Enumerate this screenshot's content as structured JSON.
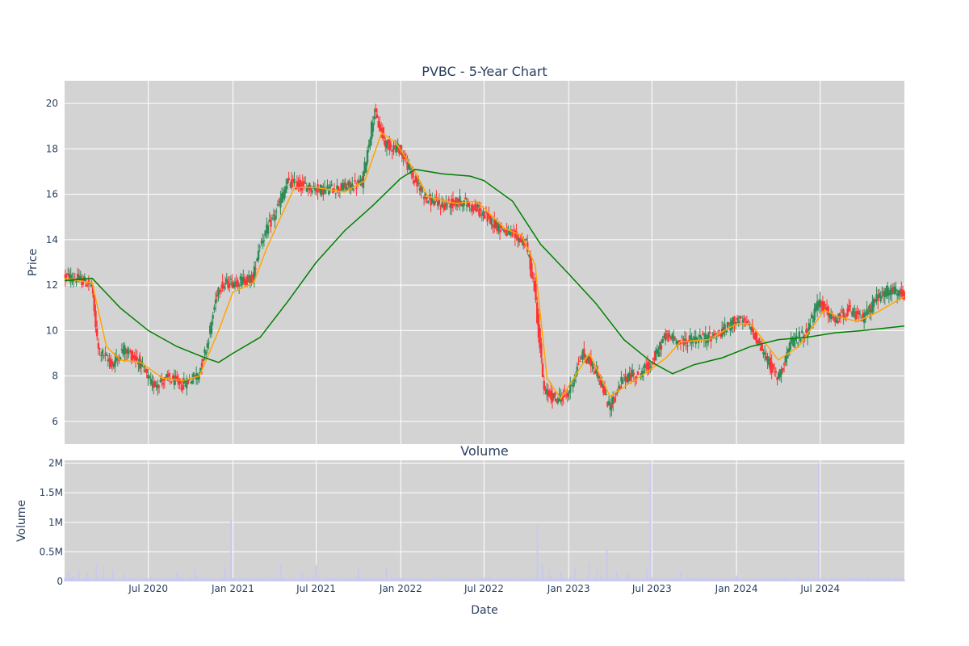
{
  "chart_data": [
    {
      "type": "candlestick",
      "title": "PVBC - 5-Year Chart",
      "ylabel": "Price",
      "ylim": [
        5.0,
        21.0
      ],
      "yticks": [
        6,
        8,
        10,
        12,
        14,
        16,
        18,
        20
      ],
      "xlim": [
        "2020-01-01",
        "2024-12-31"
      ],
      "grid": true,
      "colors": {
        "increasing": "#2e8b57",
        "decreasing": "#ff3333",
        "ma_short": "#ffa500",
        "ma_long": "#008000",
        "background": "#d3d3d3"
      },
      "close_path": [
        [
          "2020-01-01",
          12.4
        ],
        [
          "2020-02-10",
          12.2
        ],
        [
          "2020-03-01",
          12.0
        ],
        [
          "2020-03-15",
          9.2
        ],
        [
          "2020-04-15",
          8.5
        ],
        [
          "2020-05-10",
          9.2
        ],
        [
          "2020-06-10",
          8.7
        ],
        [
          "2020-07-10",
          7.6
        ],
        [
          "2020-08-15",
          7.9
        ],
        [
          "2020-09-15",
          7.6
        ],
        [
          "2020-10-20",
          8.1
        ],
        [
          "2020-11-10",
          9.6
        ],
        [
          "2020-12-01",
          11.9
        ],
        [
          "2020-12-25",
          12.1
        ],
        [
          "2021-01-20",
          12.2
        ],
        [
          "2021-02-15",
          12.3
        ],
        [
          "2021-03-01",
          13.8
        ],
        [
          "2021-04-01",
          15.0
        ],
        [
          "2021-05-01",
          16.5
        ],
        [
          "2021-06-01",
          16.4
        ],
        [
          "2021-07-15",
          16.2
        ],
        [
          "2021-09-01",
          16.3
        ],
        [
          "2021-10-10",
          16.5
        ],
        [
          "2021-11-05",
          19.6
        ],
        [
          "2021-12-01",
          18.2
        ],
        [
          "2022-01-01",
          18.0
        ],
        [
          "2022-02-01",
          16.6
        ],
        [
          "2022-03-01",
          15.8
        ],
        [
          "2022-04-01",
          15.5
        ],
        [
          "2022-05-15",
          15.7
        ],
        [
          "2022-06-20",
          15.3
        ],
        [
          "2022-08-01",
          14.6
        ],
        [
          "2022-09-01",
          14.2
        ],
        [
          "2022-10-01",
          13.9
        ],
        [
          "2022-10-20",
          11.9
        ],
        [
          "2022-11-10",
          7.3
        ],
        [
          "2022-12-05",
          7.0
        ],
        [
          "2023-01-01",
          7.2
        ],
        [
          "2023-02-01",
          9.0
        ],
        [
          "2023-03-05",
          8.2
        ],
        [
          "2023-04-01",
          6.6
        ],
        [
          "2023-05-01",
          7.9
        ],
        [
          "2023-06-01",
          8.1
        ],
        [
          "2023-07-01",
          8.5
        ],
        [
          "2023-08-01",
          9.8
        ],
        [
          "2023-09-01",
          9.5
        ],
        [
          "2023-10-01",
          9.6
        ],
        [
          "2023-11-01",
          9.7
        ],
        [
          "2023-12-01",
          9.9
        ],
        [
          "2024-01-01",
          10.5
        ],
        [
          "2024-02-01",
          10.2
        ],
        [
          "2024-03-01",
          9.0
        ],
        [
          "2024-04-01",
          7.9
        ],
        [
          "2024-05-01",
          9.5
        ],
        [
          "2024-06-01",
          9.9
        ],
        [
          "2024-07-01",
          11.3
        ],
        [
          "2024-08-01",
          10.4
        ],
        [
          "2024-09-01",
          10.9
        ],
        [
          "2024-10-01",
          10.5
        ],
        [
          "2024-11-01",
          11.4
        ],
        [
          "2024-12-01",
          11.8
        ],
        [
          "2024-12-31",
          11.5
        ]
      ],
      "moving_averages": [
        {
          "color": "#ffa500",
          "points": [
            [
              "2020-01-01",
              12.3
            ],
            [
              "2020-03-01",
              12.1
            ],
            [
              "2020-04-01",
              9.3
            ],
            [
              "2020-05-01",
              8.7
            ],
            [
              "2020-06-15",
              8.6
            ],
            [
              "2020-08-01",
              7.9
            ],
            [
              "2020-09-15",
              7.8
            ],
            [
              "2020-10-20",
              8.0
            ],
            [
              "2020-12-01",
              10.0
            ],
            [
              "2021-01-01",
              11.7
            ],
            [
              "2021-02-15",
              12.1
            ],
            [
              "2021-03-15",
              13.6
            ],
            [
              "2021-04-15",
              15.0
            ],
            [
              "2021-05-15",
              16.3
            ],
            [
              "2021-07-01",
              16.3
            ],
            [
              "2021-09-01",
              16.1
            ],
            [
              "2021-10-15",
              16.6
            ],
            [
              "2021-11-20",
              18.7
            ],
            [
              "2021-12-20",
              18.3
            ],
            [
              "2022-02-01",
              17.0
            ],
            [
              "2022-03-01",
              15.9
            ],
            [
              "2022-05-01",
              15.6
            ],
            [
              "2022-06-15",
              15.7
            ],
            [
              "2022-08-15",
              14.5
            ],
            [
              "2022-09-20",
              14.2
            ],
            [
              "2022-10-20",
              12.9
            ],
            [
              "2022-11-15",
              7.9
            ],
            [
              "2022-12-15",
              7.0
            ],
            [
              "2023-02-15",
              9.0
            ],
            [
              "2023-04-01",
              7.1
            ],
            [
              "2023-05-15",
              7.7
            ],
            [
              "2023-06-15",
              8.1
            ],
            [
              "2023-08-01",
              8.8
            ],
            [
              "2023-09-01",
              9.5
            ],
            [
              "2023-11-01",
              9.6
            ],
            [
              "2024-01-01",
              10.3
            ],
            [
              "2024-02-01",
              10.3
            ],
            [
              "2024-04-01",
              8.7
            ],
            [
              "2024-05-15",
              9.3
            ],
            [
              "2024-07-10",
              10.9
            ],
            [
              "2024-08-10",
              10.6
            ],
            [
              "2024-09-20",
              10.4
            ],
            [
              "2024-11-01",
              10.8
            ],
            [
              "2024-12-31",
              11.5
            ]
          ]
        },
        {
          "color": "#008000",
          "points": [
            [
              "2020-01-01",
              12.2
            ],
            [
              "2020-03-01",
              12.3
            ],
            [
              "2020-05-01",
              11.0
            ],
            [
              "2020-07-01",
              10.0
            ],
            [
              "2020-09-01",
              9.3
            ],
            [
              "2020-11-01",
              8.8
            ],
            [
              "2020-12-01",
              8.6
            ],
            [
              "2021-01-01",
              9.0
            ],
            [
              "2021-03-01",
              9.7
            ],
            [
              "2021-05-01",
              11.3
            ],
            [
              "2021-07-01",
              13.0
            ],
            [
              "2021-09-01",
              14.4
            ],
            [
              "2021-11-01",
              15.5
            ],
            [
              "2022-01-01",
              16.7
            ],
            [
              "2022-02-01",
              17.1
            ],
            [
              "2022-04-01",
              16.9
            ],
            [
              "2022-06-01",
              16.8
            ],
            [
              "2022-07-01",
              16.6
            ],
            [
              "2022-09-01",
              15.7
            ],
            [
              "2022-11-01",
              13.8
            ],
            [
              "2023-01-01",
              12.5
            ],
            [
              "2023-03-01",
              11.2
            ],
            [
              "2023-05-01",
              9.6
            ],
            [
              "2023-07-01",
              8.6
            ],
            [
              "2023-08-15",
              8.1
            ],
            [
              "2023-10-01",
              8.5
            ],
            [
              "2023-12-01",
              8.8
            ],
            [
              "2024-02-01",
              9.3
            ],
            [
              "2024-04-01",
              9.6
            ],
            [
              "2024-06-01",
              9.7
            ],
            [
              "2024-08-01",
              9.9
            ],
            [
              "2024-10-01",
              10.0
            ],
            [
              "2024-12-31",
              10.2
            ]
          ]
        }
      ]
    },
    {
      "type": "bar",
      "title": "Volume",
      "ylabel": "Volume",
      "xlabel": "Date",
      "ylim": [
        0,
        2050000
      ],
      "yticks": [
        0,
        500000,
        1000000,
        1500000,
        2000000
      ],
      "ytick_labels": [
        "0",
        "0.5M",
        "1M",
        "1.5M",
        "2M"
      ],
      "xticks": [
        "2020-07-01",
        "2021-01-01",
        "2021-07-01",
        "2022-01-01",
        "2022-07-01",
        "2023-01-01",
        "2023-07-01",
        "2024-01-01",
        "2024-07-01"
      ],
      "xtick_labels": [
        "Jul 2020",
        "Jan 2021",
        "Jul 2021",
        "Jan 2022",
        "Jul 2022",
        "Jan 2023",
        "Jul 2023",
        "Jan 2024",
        "Jul 2024"
      ],
      "bar_color": "#c9c9ee",
      "baseline_volume": 50000,
      "spikes": [
        [
          "2020-01-10",
          180000
        ],
        [
          "2020-02-01",
          200000
        ],
        [
          "2020-02-20",
          150000
        ],
        [
          "2020-03-10",
          300000
        ],
        [
          "2020-03-25",
          250000
        ],
        [
          "2020-04-15",
          200000
        ],
        [
          "2020-05-10",
          120000
        ],
        [
          "2020-09-01",
          150000
        ],
        [
          "2020-10-10",
          200000
        ],
        [
          "2020-12-15",
          250000
        ],
        [
          "2020-12-28",
          1050000
        ],
        [
          "2021-04-15",
          320000
        ],
        [
          "2021-06-01",
          150000
        ],
        [
          "2021-07-01",
          280000
        ],
        [
          "2021-10-01",
          220000
        ],
        [
          "2021-12-01",
          250000
        ],
        [
          "2022-10-25",
          950000
        ],
        [
          "2022-11-05",
          300000
        ],
        [
          "2022-11-20",
          200000
        ],
        [
          "2022-12-15",
          150000
        ],
        [
          "2023-01-15",
          250000
        ],
        [
          "2023-02-15",
          300000
        ],
        [
          "2023-03-05",
          200000
        ],
        [
          "2023-03-25",
          550000
        ],
        [
          "2023-04-15",
          180000
        ],
        [
          "2023-05-10",
          150000
        ],
        [
          "2023-06-20",
          200000
        ],
        [
          "2023-06-28",
          2000000
        ],
        [
          "2023-09-01",
          180000
        ],
        [
          "2024-01-01",
          100000
        ],
        [
          "2024-06-28",
          2000000
        ]
      ]
    }
  ]
}
